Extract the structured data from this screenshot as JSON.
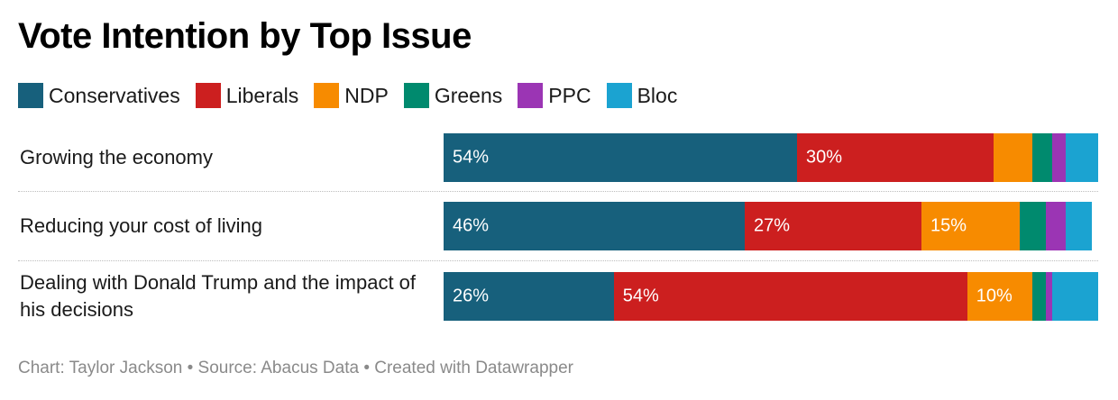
{
  "title": "Vote Intention by Top Issue",
  "footer": "Chart: Taylor Jackson • Source: Abacus Data • Created with Datawrapper",
  "colors": {
    "Conservatives": "#17607c",
    "Liberals": "#cc1f1f",
    "NDP": "#f78b00",
    "Greens": "#008a6e",
    "PPC": "#9b35b4",
    "Bloc": "#1ba3d1"
  },
  "chart_data": {
    "type": "bar",
    "orientation": "horizontal",
    "stacked": true,
    "title": "Vote Intention by Top Issue",
    "xlim": [
      0,
      100
    ],
    "unit": "%",
    "legend_placement": "top-left",
    "categories": [
      "Growing the economy",
      "Reducing your cost of living",
      "Dealing with Donald Trump and the impact of his decisions"
    ],
    "series": [
      {
        "name": "Conservatives",
        "values": [
          54,
          46,
          26
        ],
        "labels": [
          "54%",
          "46%",
          "26%"
        ]
      },
      {
        "name": "Liberals",
        "values": [
          30,
          27,
          54
        ],
        "labels": [
          "30%",
          "27%",
          "54%"
        ]
      },
      {
        "name": "NDP",
        "values": [
          6,
          15,
          10
        ],
        "labels": [
          "",
          "15%",
          "10%"
        ]
      },
      {
        "name": "Greens",
        "values": [
          3,
          4,
          2
        ],
        "labels": [
          "",
          "",
          ""
        ]
      },
      {
        "name": "PPC",
        "values": [
          2,
          3,
          1
        ],
        "labels": [
          "",
          "",
          ""
        ]
      },
      {
        "name": "Bloc",
        "values": [
          5,
          4,
          7
        ],
        "labels": [
          "",
          "",
          ""
        ]
      }
    ]
  }
}
